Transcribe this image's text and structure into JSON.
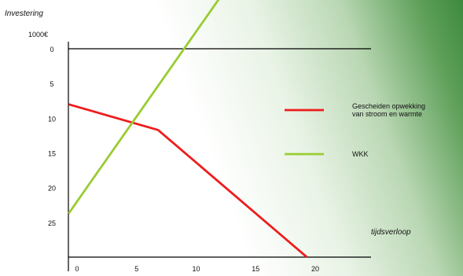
{
  "chart_data": {
    "type": "line",
    "title": "",
    "ylabel": "Investering",
    "yunit": "1000€",
    "xlabel": "tijdsverloop",
    "x_ticks": [
      0,
      5,
      10,
      15,
      20
    ],
    "y_ticks": [
      0,
      5,
      10,
      15,
      20,
      25
    ],
    "xlim": [
      -0.5,
      22
    ],
    "ylim": [
      0,
      30
    ],
    "y_inverted": true,
    "grid": false,
    "legend_position": "right",
    "series": [
      {
        "name": "Gescheiden  opwekking van stroom en warmte",
        "name_lines": [
          "Gescheiden  opwekking",
          "van stroom en warmte"
        ],
        "color": "#ee1c1c",
        "x": [
          -0.5,
          7,
          19.5
        ],
        "y": [
          8,
          11.7,
          30
        ]
      },
      {
        "name": "WKK",
        "name_lines": [
          "WKK"
        ],
        "color": "#99cc33",
        "x": [
          -0.5,
          14.5
        ],
        "y": [
          23.7,
          -13
        ]
      }
    ]
  }
}
